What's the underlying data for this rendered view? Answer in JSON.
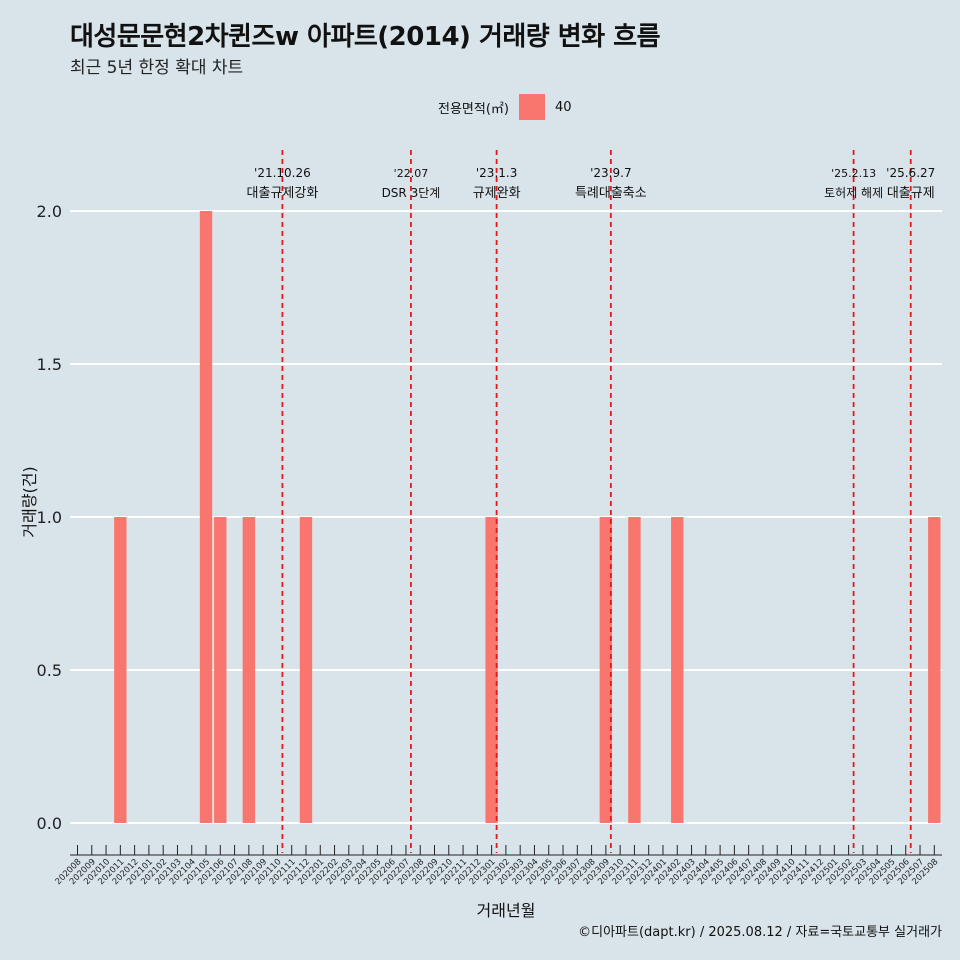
{
  "title": "대성문문현2차퀸즈w 아파트(2014) 거래량 변화 흐름",
  "subtitle": "최근 5년 한정 확대 차트",
  "legend": {
    "title": "전용면적(㎡)",
    "label": "40"
  },
  "caption": "©디아파트(dapt.kr) / 2025.08.12 / 자료=국토교통부 실거래가",
  "colors": {
    "background": "#d8e4ea",
    "bar": "#f8766d",
    "gridline": "#ffffff",
    "event_line": "#e31a1c"
  },
  "chart_data": {
    "type": "bar",
    "title": "대성문문현2차퀸즈w 아파트(2014) 거래량 변화 흐름",
    "subtitle": "최근 5년 한정 확대 차트",
    "xlabel": "거래년월",
    "ylabel": "거래량(건)",
    "ylim": [
      0,
      2
    ],
    "yticks": [
      "0.0",
      "0.5",
      "1.0",
      "1.5",
      "2.0"
    ],
    "grid": "horizontal",
    "legend_position": "top",
    "categories": [
      "202008",
      "202009",
      "202010",
      "202011",
      "202012",
      "202101",
      "202102",
      "202103",
      "202104",
      "202105",
      "202106",
      "202107",
      "202108",
      "202109",
      "202110",
      "202111",
      "202112",
      "202201",
      "202202",
      "202203",
      "202204",
      "202205",
      "202206",
      "202207",
      "202208",
      "202209",
      "202210",
      "202211",
      "202212",
      "202301",
      "202302",
      "202303",
      "202304",
      "202305",
      "202306",
      "202307",
      "202308",
      "202309",
      "202310",
      "202311",
      "202312",
      "202401",
      "202402",
      "202403",
      "202404",
      "202405",
      "202406",
      "202407",
      "202408",
      "202409",
      "202410",
      "202411",
      "202412",
      "202501",
      "202502",
      "202503",
      "202504",
      "202505",
      "202506",
      "202507",
      "202508"
    ],
    "series": [
      {
        "name": "40",
        "values": [
          0,
          0,
          0,
          1,
          0,
          0,
          0,
          0,
          0,
          2,
          1,
          0,
          1,
          0,
          0,
          0,
          1,
          0,
          0,
          0,
          0,
          0,
          0,
          0,
          0,
          0,
          0,
          0,
          0,
          1,
          0,
          0,
          0,
          0,
          0,
          0,
          0,
          1,
          0,
          1,
          0,
          0,
          1,
          0,
          0,
          0,
          0,
          0,
          0,
          0,
          0,
          0,
          0,
          0,
          0,
          0,
          0,
          0,
          0,
          0,
          1
        ]
      }
    ],
    "events": [
      {
        "date": "'21.10.26",
        "label": "대출규제강화",
        "position": 14.35
      },
      {
        "date": "'22.07",
        "label": "DSR 3단계",
        "position": 23.35
      },
      {
        "date": "'23.1.3",
        "label": "규제완화",
        "position": 29.35
      },
      {
        "date": "'23.9.7",
        "label": "특례대출축소",
        "position": 37.35
      },
      {
        "date": "'25.2.13",
        "label": "토허제 해제",
        "position": 54.35
      },
      {
        "date": "'25.6.27",
        "label": "대출규제",
        "position": 58.35
      }
    ]
  }
}
